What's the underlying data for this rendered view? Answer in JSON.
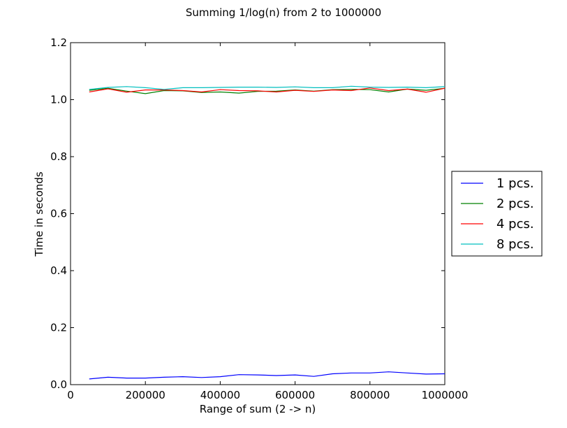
{
  "chart_data": {
    "type": "line",
    "title": "Summing 1/log(n) from 2 to 1000000",
    "xlabel": "Range of sum (2 -> n)",
    "ylabel": "Time in seconds",
    "xlim": [
      0,
      1000000
    ],
    "ylim": [
      0,
      1.2
    ],
    "xticks": [
      0,
      200000,
      400000,
      600000,
      800000,
      1000000
    ],
    "xtick_labels": [
      "0",
      "200000",
      "400000",
      "600000",
      "800000",
      "1000000"
    ],
    "yticks": [
      0.0,
      0.2,
      0.4,
      0.6,
      0.8,
      1.0,
      1.2
    ],
    "ytick_labels": [
      "0.0",
      "0.2",
      "0.4",
      "0.6",
      "0.8",
      "1.0",
      "1.2"
    ],
    "grid": false,
    "legend_position": "outside-right",
    "x": [
      50000,
      100000,
      150000,
      200000,
      250000,
      300000,
      350000,
      400000,
      450000,
      500000,
      550000,
      600000,
      650000,
      700000,
      750000,
      800000,
      850000,
      900000,
      950000,
      1000000
    ],
    "series": [
      {
        "name": "1 pcs.",
        "color": "#0000ff",
        "values": [
          0.02,
          0.026,
          0.023,
          0.023,
          0.026,
          0.028,
          0.025,
          0.028,
          0.035,
          0.034,
          0.032,
          0.034,
          0.029,
          0.038,
          0.041,
          0.041,
          0.045,
          0.041,
          0.037,
          0.038
        ]
      },
      {
        "name": "2 pcs.",
        "color": "#008000",
        "values": [
          1.033,
          1.04,
          1.03,
          1.021,
          1.032,
          1.031,
          1.025,
          1.027,
          1.023,
          1.029,
          1.03,
          1.034,
          1.03,
          1.035,
          1.036,
          1.035,
          1.027,
          1.037,
          1.033,
          1.04
        ]
      },
      {
        "name": "4 pcs.",
        "color": "#ff0000",
        "values": [
          1.027,
          1.038,
          1.026,
          1.034,
          1.034,
          1.032,
          1.027,
          1.035,
          1.032,
          1.031,
          1.027,
          1.033,
          1.029,
          1.034,
          1.032,
          1.041,
          1.032,
          1.037,
          1.026,
          1.04
        ]
      },
      {
        "name": "8 pcs.",
        "color": "#00bfbf",
        "values": [
          1.036,
          1.043,
          1.046,
          1.042,
          1.036,
          1.042,
          1.042,
          1.043,
          1.044,
          1.044,
          1.043,
          1.045,
          1.042,
          1.042,
          1.047,
          1.044,
          1.043,
          1.044,
          1.042,
          1.046
        ]
      }
    ]
  }
}
